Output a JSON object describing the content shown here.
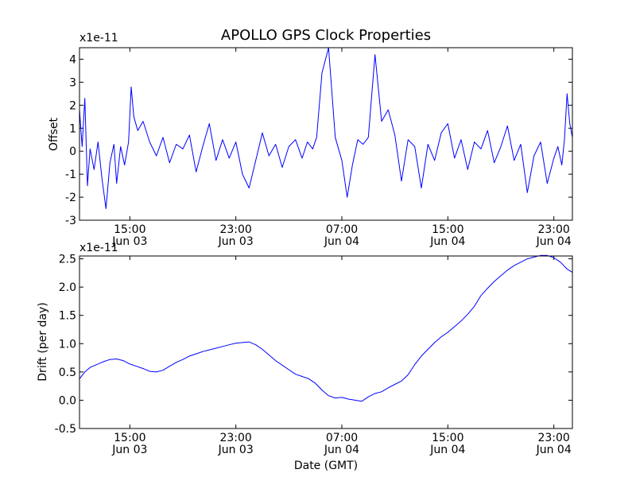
{
  "chart_data": [
    {
      "type": "line",
      "title": "APOLLO GPS Clock Properties",
      "ylabel": "Offset",
      "xlabel": "",
      "y_multiplier": "x1e-11",
      "ylim": [
        -3,
        4.5
      ],
      "y_ticks": [
        -3,
        -2,
        -1,
        0,
        1,
        2,
        3,
        4
      ],
      "y_tick_labels": [
        "-3",
        "-2",
        "-1",
        "0",
        "1",
        "2",
        "3",
        "4"
      ],
      "xlim_hours": [
        11.2,
        48.4
      ],
      "x_ticks_hours": [
        15,
        23,
        31,
        39,
        47
      ],
      "x_tick_labels": [
        [
          "15:00",
          "Jun 03"
        ],
        [
          "23:00",
          "Jun 03"
        ],
        [
          "07:00",
          "Jun 04"
        ],
        [
          "15:00",
          "Jun 04"
        ],
        [
          "23:00",
          "Jun 04"
        ]
      ],
      "series": [
        {
          "color": "#0000ff",
          "x": [
            11.2,
            11.4,
            11.6,
            11.8,
            12.0,
            12.3,
            12.6,
            12.9,
            13.2,
            13.5,
            13.8,
            14.0,
            14.3,
            14.6,
            14.9,
            15.1,
            15.3,
            15.6,
            16.0,
            16.5,
            17.0,
            17.5,
            18.0,
            18.5,
            19.0,
            19.5,
            20.0,
            20.5,
            21.0,
            21.5,
            22.0,
            22.5,
            23.0,
            23.5,
            24.0,
            24.5,
            25.0,
            25.5,
            26.0,
            26.5,
            27.0,
            27.5,
            28.0,
            28.4,
            28.8,
            29.1,
            29.5,
            30.0,
            30.5,
            31.0,
            31.4,
            31.8,
            32.2,
            32.6,
            33.0,
            33.5,
            34.0,
            34.5,
            35.0,
            35.5,
            36.0,
            36.5,
            37.0,
            37.5,
            38.0,
            38.5,
            39.0,
            39.5,
            40.0,
            40.5,
            41.0,
            41.5,
            42.0,
            42.5,
            43.0,
            43.5,
            44.0,
            44.5,
            45.0,
            45.5,
            46.0,
            46.5,
            47.0,
            47.3,
            47.6,
            47.8,
            48.0,
            48.2,
            48.4
          ],
          "values": [
            1.8,
            0.2,
            2.3,
            -1.5,
            0.1,
            -0.8,
            0.4,
            -1.2,
            -2.5,
            -0.5,
            0.3,
            -1.4,
            0.2,
            -0.6,
            0.4,
            2.8,
            1.5,
            0.9,
            1.3,
            0.4,
            -0.2,
            0.6,
            -0.5,
            0.3,
            0.1,
            0.7,
            -0.9,
            0.2,
            1.2,
            -0.4,
            0.5,
            -0.3,
            0.4,
            -1.0,
            -1.6,
            -0.4,
            0.8,
            -0.2,
            0.3,
            -0.7,
            0.2,
            0.5,
            -0.3,
            0.4,
            0.1,
            0.6,
            3.4,
            4.5,
            0.6,
            -0.4,
            -2.0,
            -0.6,
            0.5,
            0.3,
            0.6,
            4.2,
            1.3,
            1.8,
            0.7,
            -1.3,
            0.5,
            0.2,
            -1.6,
            0.3,
            -0.4,
            0.8,
            1.2,
            -0.3,
            0.5,
            -0.8,
            0.4,
            0.1,
            0.9,
            -0.5,
            0.2,
            1.1,
            -0.4,
            0.3,
            -1.8,
            -0.2,
            0.4,
            -1.4,
            -0.3,
            0.2,
            -0.6,
            0.5,
            2.5,
            1.2,
            0.6
          ]
        }
      ]
    },
    {
      "type": "line",
      "title": "",
      "ylabel": "Drift (per day)",
      "xlabel": "Date (GMT)",
      "y_multiplier": "x1e-11",
      "ylim": [
        -0.5,
        2.55
      ],
      "y_ticks": [
        -0.5,
        0.0,
        0.5,
        1.0,
        1.5,
        2.0,
        2.5
      ],
      "y_tick_labels": [
        "-0.5",
        "0.0",
        "0.5",
        "1.0",
        "1.5",
        "2.0",
        "2.5"
      ],
      "xlim_hours": [
        11.2,
        48.4
      ],
      "x_ticks_hours": [
        15,
        23,
        31,
        39,
        47
      ],
      "x_tick_labels": [
        [
          "15:00",
          "Jun 03"
        ],
        [
          "23:00",
          "Jun 03"
        ],
        [
          "07:00",
          "Jun 04"
        ],
        [
          "15:00",
          "Jun 04"
        ],
        [
          "23:00",
          "Jun 04"
        ]
      ],
      "series": [
        {
          "color": "#0000ff",
          "x": [
            11.2,
            11.6,
            12.0,
            12.5,
            13.0,
            13.5,
            14.0,
            14.5,
            15.0,
            15.5,
            16.0,
            16.5,
            17.0,
            17.5,
            18.0,
            18.5,
            19.0,
            19.5,
            20.0,
            20.5,
            21.0,
            21.5,
            22.0,
            22.5,
            23.0,
            23.5,
            24.0,
            24.5,
            25.0,
            25.5,
            26.0,
            26.5,
            27.0,
            27.5,
            28.0,
            28.5,
            29.0,
            29.5,
            30.0,
            30.5,
            31.0,
            31.5,
            32.0,
            32.5,
            33.0,
            33.5,
            34.0,
            34.5,
            35.0,
            35.5,
            36.0,
            36.5,
            37.0,
            37.5,
            38.0,
            38.5,
            39.0,
            39.5,
            40.0,
            40.5,
            41.0,
            41.5,
            42.0,
            42.5,
            43.0,
            43.5,
            44.0,
            44.5,
            45.0,
            45.5,
            46.0,
            46.5,
            47.0,
            47.5,
            48.0,
            48.4
          ],
          "values": [
            0.38,
            0.5,
            0.58,
            0.63,
            0.68,
            0.72,
            0.73,
            0.7,
            0.64,
            0.6,
            0.56,
            0.51,
            0.5,
            0.53,
            0.6,
            0.67,
            0.72,
            0.78,
            0.82,
            0.86,
            0.89,
            0.92,
            0.95,
            0.98,
            1.01,
            1.02,
            1.03,
            0.98,
            0.9,
            0.8,
            0.7,
            0.62,
            0.54,
            0.46,
            0.42,
            0.38,
            0.3,
            0.18,
            0.08,
            0.04,
            0.05,
            0.02,
            0.0,
            -0.02,
            0.06,
            0.12,
            0.15,
            0.22,
            0.28,
            0.34,
            0.45,
            0.63,
            0.78,
            0.9,
            1.02,
            1.12,
            1.2,
            1.3,
            1.4,
            1.52,
            1.66,
            1.85,
            1.98,
            2.1,
            2.2,
            2.3,
            2.38,
            2.44,
            2.5,
            2.53,
            2.56,
            2.56,
            2.52,
            2.44,
            2.32,
            2.26
          ]
        }
      ]
    }
  ]
}
